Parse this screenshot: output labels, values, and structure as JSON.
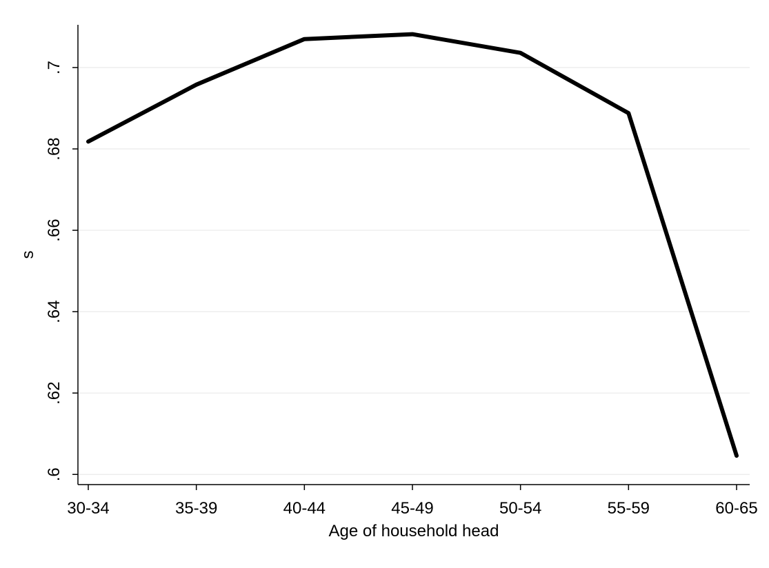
{
  "chart_data": {
    "type": "line",
    "title": "",
    "xlabel": "Age of household head",
    "ylabel": "s",
    "categories": [
      "30-34",
      "35-39",
      "40-44",
      "45-49",
      "50-54",
      "55-59",
      "60-65"
    ],
    "series": [
      {
        "values": [
          0.6818,
          0.6958,
          0.707,
          0.7082,
          0.7036,
          0.6888,
          0.6046
        ],
        "color": "#000000"
      }
    ],
    "yticks": [
      0.6,
      0.62,
      0.64,
      0.66,
      0.68,
      0.7
    ],
    "ytick_labels": [
      ".6",
      ".62",
      ".64",
      ".66",
      ".68",
      ".7"
    ],
    "ylim": [
      0.5975,
      0.7105
    ],
    "grid": "horizontal",
    "gridline_color": "#eaeaea",
    "axis_color": "#000000",
    "legend": "none"
  }
}
